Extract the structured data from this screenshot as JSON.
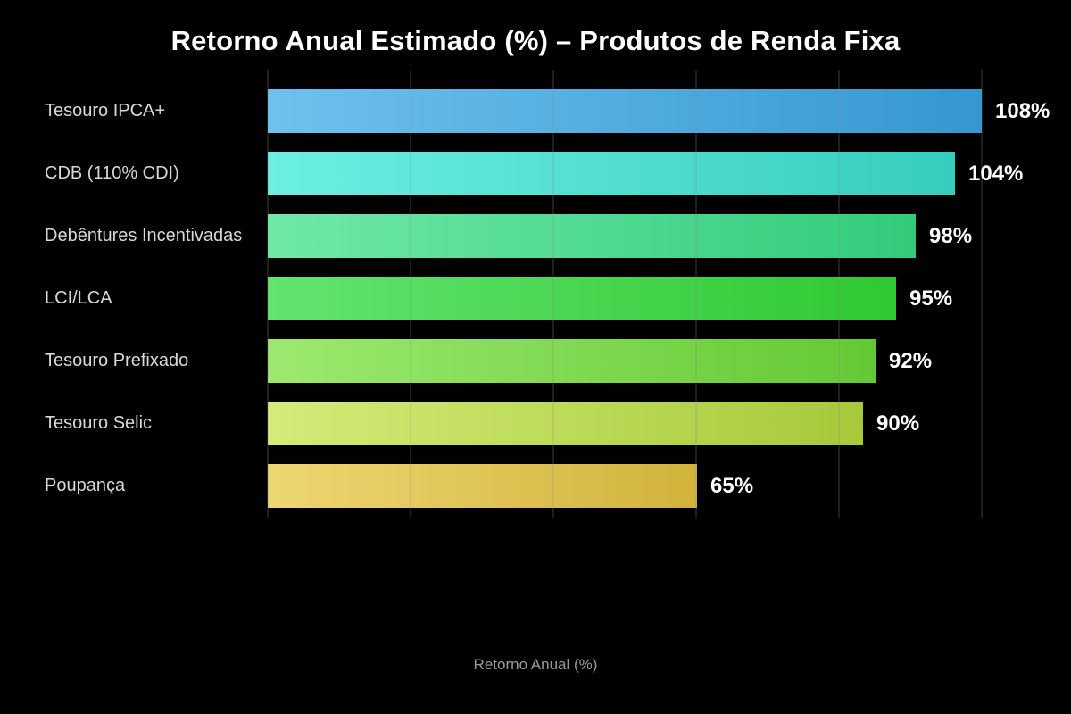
{
  "chart_data": {
    "type": "bar",
    "orientation": "horizontal",
    "title": "Retorno Anual Estimado (%) – Produtos de Renda Fixa",
    "xlabel": "Retorno Anual (%)",
    "categories": [
      "Tesouro IPCA+",
      "CDB (110% CDI)",
      "Debêntures Incentivadas",
      "LCI/LCA",
      "Tesouro Prefixado",
      "Tesouro Selic",
      "Poupança"
    ],
    "values": [
      108,
      104,
      98,
      95,
      92,
      90,
      65
    ],
    "value_labels": [
      "108%",
      "104%",
      "98%",
      "95%",
      "92%",
      "90%",
      "65%"
    ],
    "xlim": [
      0,
      108
    ],
    "grid": "vertical",
    "gridline_count": 6,
    "legend": "none",
    "colors": {
      "background": "#000000",
      "title": "#ffffff",
      "category_label": "#d8d8d8",
      "value_label": "#ffffff",
      "axis_label": "#9a9a9a",
      "gridline": "#1f1f1f"
    },
    "bar_gradients": [
      [
        "#6fc0ee",
        "#3597d0"
      ],
      [
        "#6cefe1",
        "#36cdbe"
      ],
      [
        "#6ee9a6",
        "#33ca7c"
      ],
      [
        "#62e470",
        "#2fc831"
      ],
      [
        "#9de96f",
        "#63c933"
      ],
      [
        "#d4eb78",
        "#a6c93a"
      ],
      [
        "#eed672",
        "#d1b33b"
      ]
    ]
  }
}
